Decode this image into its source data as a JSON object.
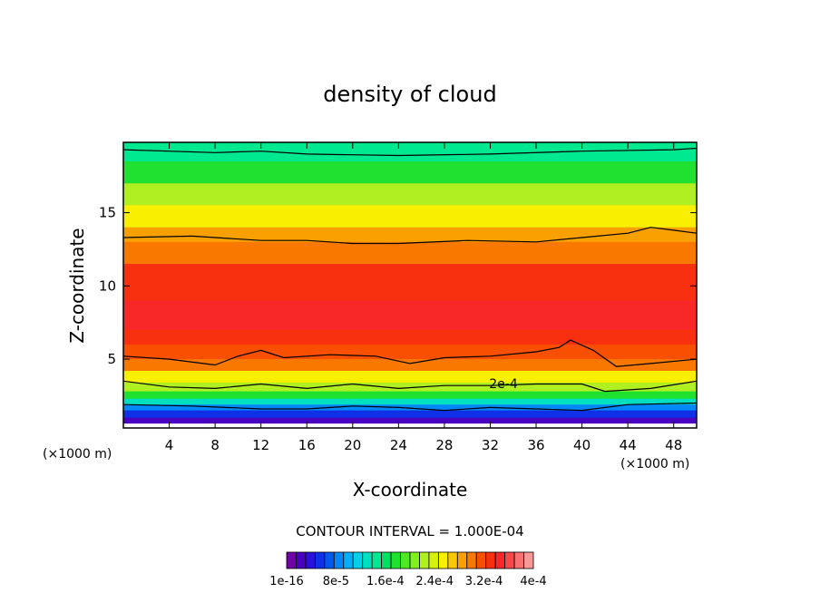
{
  "chart_data": {
    "type": "heatmap",
    "title": "density of cloud",
    "xlabel": "X-coordinate",
    "ylabel": "Z-coordinate",
    "x_unit_left": "(×1000 m)",
    "x_unit_right": "(×1000 m)",
    "xlim": [
      0,
      50
    ],
    "ylim": [
      0.3,
      19.8
    ],
    "x_ticks": [
      4,
      8,
      12,
      16,
      20,
      24,
      28,
      32,
      36,
      40,
      44,
      48
    ],
    "x_tick_labels": [
      "4",
      "8",
      "12",
      "16",
      "20",
      "24",
      "28",
      "32",
      "36",
      "40",
      "44",
      "48"
    ],
    "y_ticks": [
      5,
      10,
      15
    ],
    "y_tick_labels": [
      "5",
      "10",
      "15"
    ],
    "contour_label": "2e-4",
    "contour_interval_text": "CONTOUR INTERVAL = 1.000E-04",
    "colorbar": {
      "colors": [
        "#7000a8",
        "#4a00c0",
        "#2a10d8",
        "#1030e8",
        "#0058f0",
        "#0088f8",
        "#00b0f8",
        "#00d0e8",
        "#00e0c0",
        "#00e890",
        "#00e060",
        "#20e030",
        "#50e820",
        "#80f020",
        "#b0f020",
        "#d8f010",
        "#f8f000",
        "#f8c800",
        "#f8a000",
        "#f87800",
        "#f85000",
        "#f83010",
        "#f82828",
        "#f84848",
        "#f87070",
        "#f89898"
      ],
      "tick_labels": [
        "1e-16",
        "8e-5",
        "1.6e-4",
        "2.4e-4",
        "3.2e-4",
        "4e-4"
      ]
    },
    "bands": [
      {
        "z": 19.8,
        "value": 0.00015
      },
      {
        "z": 18.5,
        "value": 0.00018
      },
      {
        "z": 17.0,
        "value": 0.00022
      },
      {
        "z": 15.5,
        "value": 0.00026
      },
      {
        "z": 14.0,
        "value": 0.00029
      },
      {
        "z": 13.0,
        "value": 0.00031
      },
      {
        "z": 11.5,
        "value": 0.00033
      },
      {
        "z": 9.0,
        "value": 0.00035
      },
      {
        "z": 7.0,
        "value": 0.00034
      },
      {
        "z": 6.0,
        "value": 0.00032
      },
      {
        "z": 5.0,
        "value": 0.0003
      },
      {
        "z": 4.2,
        "value": 0.00026
      },
      {
        "z": 3.4,
        "value": 0.00022
      },
      {
        "z": 2.8,
        "value": 0.00017
      },
      {
        "z": 2.3,
        "value": 0.00012
      },
      {
        "z": 1.9,
        "value": 8e-05
      },
      {
        "z": 1.5,
        "value": 4e-05
      },
      {
        "z": 1.0,
        "value": 1e-05
      },
      {
        "z": 0.6,
        "value": 0.0
      }
    ],
    "contours": [
      {
        "value": 0.0001,
        "points": [
          [
            0,
            19.3
          ],
          [
            8,
            19.1
          ],
          [
            12,
            19.2
          ],
          [
            16,
            19.0
          ],
          [
            24,
            18.9
          ],
          [
            32,
            19.0
          ],
          [
            40,
            19.2
          ],
          [
            48,
            19.3
          ],
          [
            50,
            19.4
          ]
        ]
      },
      {
        "value": 0.0003,
        "points": [
          [
            0,
            13.3
          ],
          [
            6,
            13.4
          ],
          [
            12,
            13.1
          ],
          [
            16,
            13.1
          ],
          [
            20,
            12.9
          ],
          [
            24,
            12.9
          ],
          [
            30,
            13.1
          ],
          [
            36,
            13.0
          ],
          [
            40,
            13.3
          ],
          [
            44,
            13.6
          ],
          [
            46,
            14.0
          ],
          [
            48,
            13.8
          ],
          [
            50,
            13.6
          ]
        ]
      },
      {
        "value": 0.0003,
        "points": [
          [
            0,
            5.2
          ],
          [
            4,
            5.0
          ],
          [
            8,
            4.6
          ],
          [
            10,
            5.2
          ],
          [
            12,
            5.6
          ],
          [
            14,
            5.1
          ],
          [
            18,
            5.3
          ],
          [
            22,
            5.2
          ],
          [
            25,
            4.7
          ],
          [
            28,
            5.1
          ],
          [
            32,
            5.2
          ],
          [
            36,
            5.5
          ],
          [
            38,
            5.8
          ],
          [
            39,
            6.3
          ],
          [
            41,
            5.6
          ],
          [
            43,
            4.5
          ],
          [
            46,
            4.7
          ],
          [
            50,
            5.0
          ]
        ]
      },
      {
        "value": 0.0002,
        "points": [
          [
            0,
            3.5
          ],
          [
            4,
            3.1
          ],
          [
            8,
            3.0
          ],
          [
            12,
            3.3
          ],
          [
            16,
            3.0
          ],
          [
            20,
            3.3
          ],
          [
            24,
            3.0
          ],
          [
            28,
            3.2
          ],
          [
            32,
            3.2
          ],
          [
            36,
            3.3
          ],
          [
            40,
            3.3
          ],
          [
            42,
            2.8
          ],
          [
            46,
            3.0
          ],
          [
            50,
            3.5
          ]
        ]
      },
      {
        "value": 5e-05,
        "points": [
          [
            0,
            1.9
          ],
          [
            6,
            1.8
          ],
          [
            12,
            1.6
          ],
          [
            16,
            1.6
          ],
          [
            20,
            1.8
          ],
          [
            24,
            1.7
          ],
          [
            28,
            1.5
          ],
          [
            32,
            1.7
          ],
          [
            36,
            1.6
          ],
          [
            40,
            1.5
          ],
          [
            44,
            1.9
          ],
          [
            50,
            2.0
          ]
        ]
      }
    ]
  }
}
